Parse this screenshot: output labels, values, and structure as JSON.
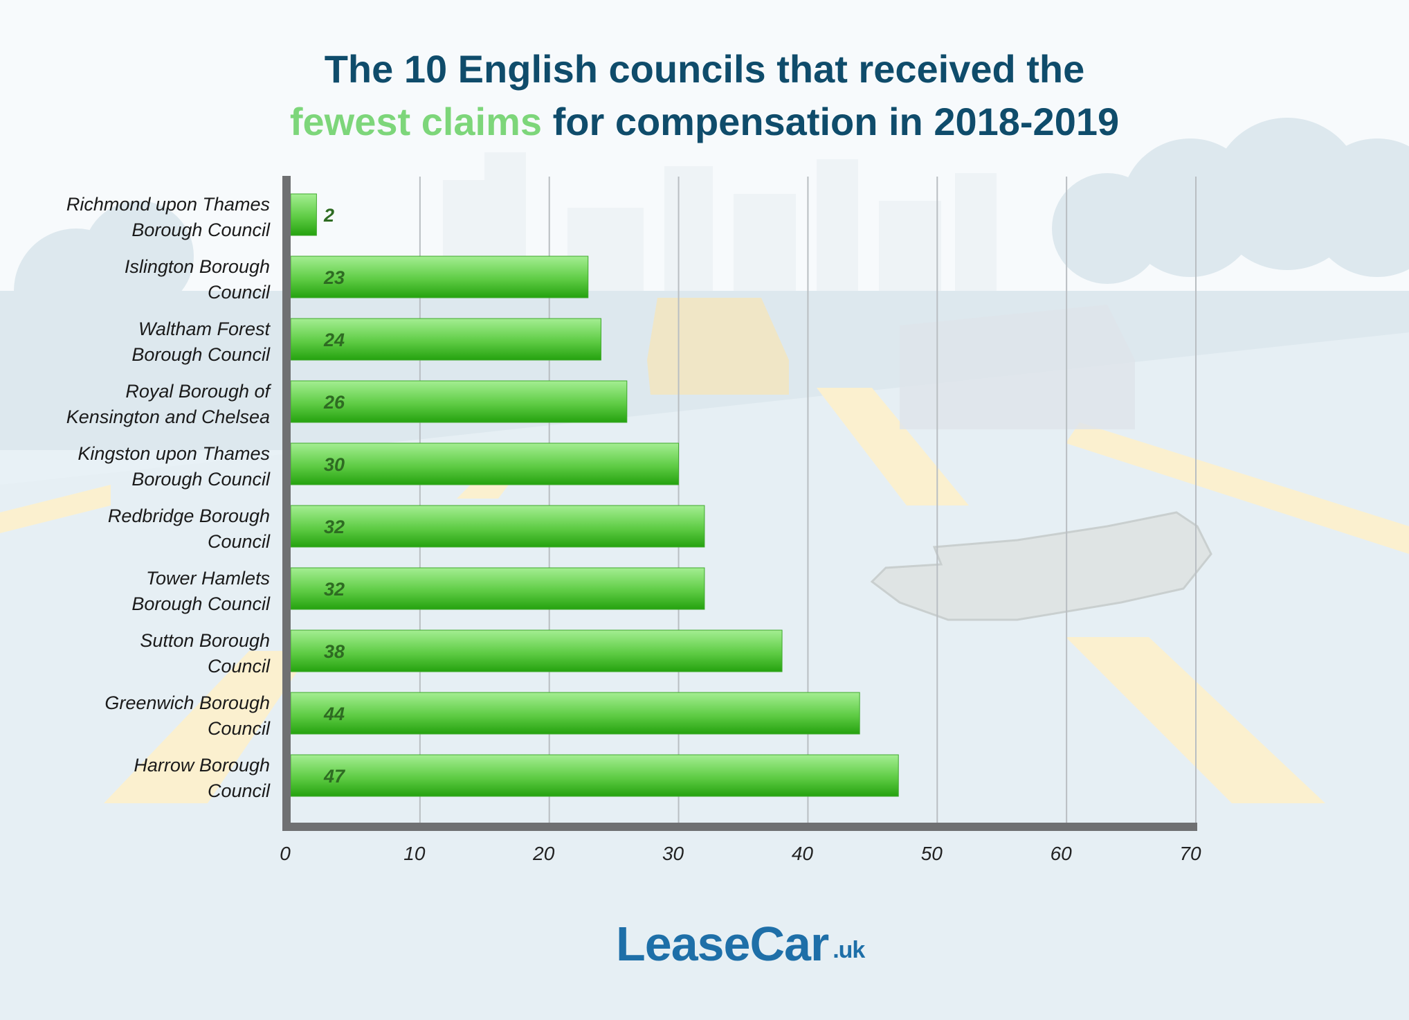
{
  "title": {
    "line1": "The 10 English councils that received the",
    "highlight": "fewest claims",
    "line2_rest": " for compensation in 2018-2019"
  },
  "colors": {
    "title": "#0f4c6b",
    "highlight": "#7dd67a",
    "bar_top": "#9be88a",
    "bar_bottom": "#2aa812",
    "axis": "#666666",
    "value_label": "#2e6b22"
  },
  "logo": {
    "name": "LeaseCar",
    "tld": ".uk",
    "icon": "car-road-icon"
  },
  "chart_data": {
    "type": "bar",
    "orientation": "horizontal",
    "title": "The 10 English councils that received the fewest claims for compensation in 2018-2019",
    "categories": [
      [
        "Richmond upon Thames",
        "Borough Council"
      ],
      [
        "Islington Borough",
        "Council"
      ],
      [
        "Waltham Forest",
        "Borough Council"
      ],
      [
        "Royal Borough of",
        "Kensington and Chelsea"
      ],
      [
        "Kingston upon Thames",
        "Borough Council"
      ],
      [
        "Redbridge Borough",
        "Council"
      ],
      [
        "Tower Hamlets",
        "Borough Council"
      ],
      [
        "Sutton Borough",
        "Council"
      ],
      [
        "Greenwich Borough",
        "Council"
      ],
      [
        "Harrow Borough",
        "Council"
      ]
    ],
    "values": [
      2,
      23,
      24,
      26,
      30,
      32,
      32,
      38,
      44,
      47
    ],
    "xlim": [
      0,
      70
    ],
    "xticks": [
      0,
      10,
      20,
      30,
      40,
      50,
      60,
      70
    ],
    "grid": true,
    "xlabel": "",
    "ylabel": ""
  }
}
